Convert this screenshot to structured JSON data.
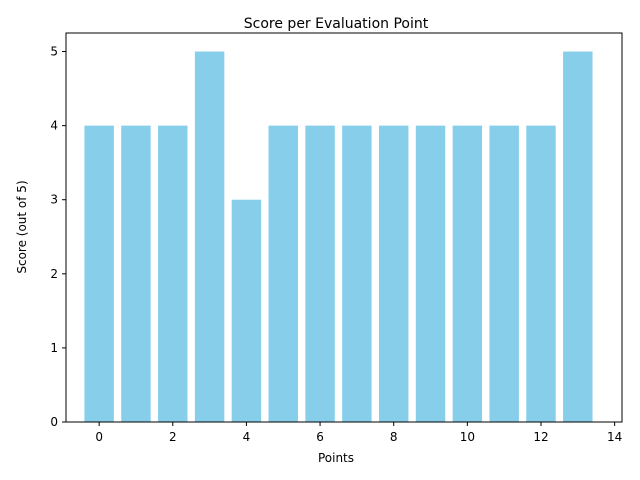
{
  "chart_data": {
    "type": "bar",
    "title": "Score per Evaluation Point",
    "xlabel": "Points",
    "ylabel": "Score (out of 5)",
    "x": [
      0,
      1,
      2,
      3,
      4,
      5,
      6,
      7,
      8,
      9,
      10,
      11,
      12,
      13
    ],
    "values": [
      4,
      4,
      4,
      5,
      3,
      4,
      4,
      4,
      4,
      4,
      4,
      4,
      4,
      5
    ],
    "xlim": [
      -0.9,
      14.2
    ],
    "ylim": [
      0,
      5.25
    ],
    "xticks": [
      0,
      2,
      4,
      6,
      8,
      10,
      12,
      14
    ],
    "yticks": [
      0,
      1,
      2,
      3,
      4,
      5
    ],
    "bar_color": "#87ceeb",
    "grid": false,
    "legend": "none"
  }
}
